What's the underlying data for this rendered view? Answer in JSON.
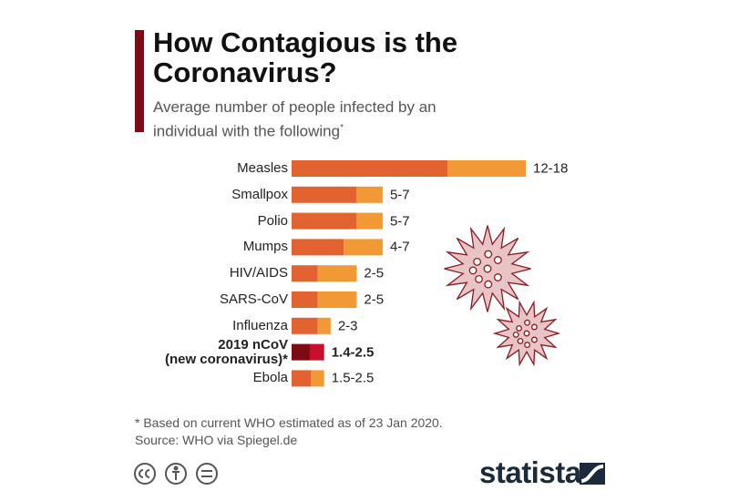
{
  "chart_data": {
    "type": "range_bar",
    "title": "How Contagious is the Coronavirus?",
    "subtitle": "Average number of people infected by an individual with the following",
    "subtitle_mark": "*",
    "categories": [
      "Measles",
      "Smallpox",
      "Polio",
      "Mumps",
      "HIV/AIDS",
      "SARS-CoV",
      "Influenza",
      "2019 nCoV\n(new coronavirus)*",
      "Ebola"
    ],
    "low": [
      12,
      5,
      5,
      4,
      2,
      2,
      2,
      1.4,
      1.5
    ],
    "high": [
      18,
      7,
      7,
      7,
      5,
      5,
      3,
      2.5,
      2.5
    ],
    "value_labels": [
      "12-18",
      "5-7",
      "5-7",
      "4-7",
      "2-5",
      "2-5",
      "2-3",
      "1.4-2.5",
      "1.5-2.5"
    ],
    "colors": [
      "#e2632f",
      "#f19a35"
    ],
    "highlight": [
      false,
      false,
      false,
      false,
      false,
      false,
      false,
      true,
      false
    ],
    "highlight_colors": [
      "#7e0b14",
      "#c8102e"
    ],
    "note": "* Based on current WHO estimated as of 23 Jan 2020.",
    "source": "Source: WHO via Spiegel.de",
    "brand": "statista"
  }
}
